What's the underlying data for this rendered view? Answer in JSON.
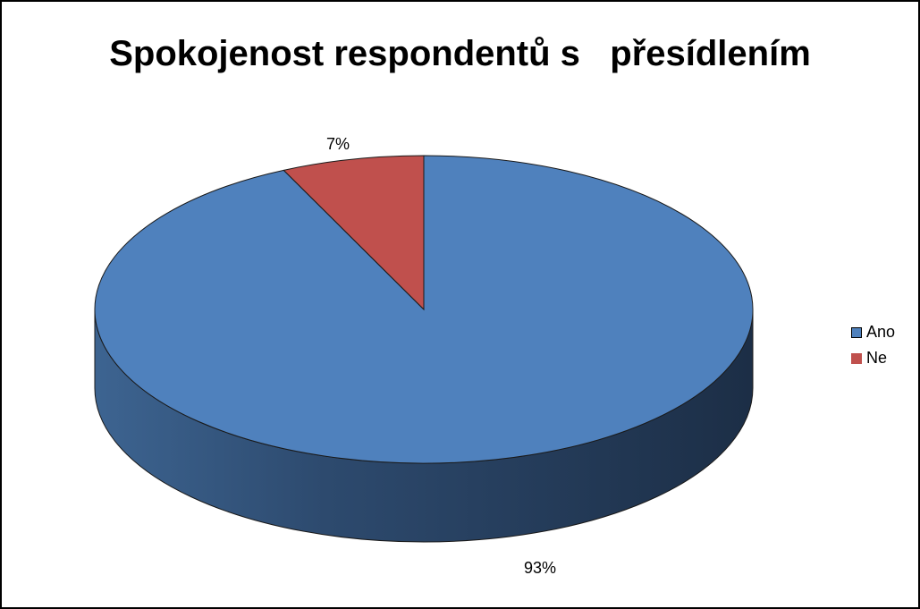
{
  "chart_data": {
    "type": "pie",
    "title": "Spokojenost respondentů s   přesídlením",
    "categories": [
      "Ano",
      "Ne"
    ],
    "values": [
      93,
      7
    ],
    "data_labels": [
      "93%",
      "7%"
    ],
    "colors": [
      "#4f81bd",
      "#c0504d"
    ],
    "legend": "right",
    "style": "3d"
  }
}
